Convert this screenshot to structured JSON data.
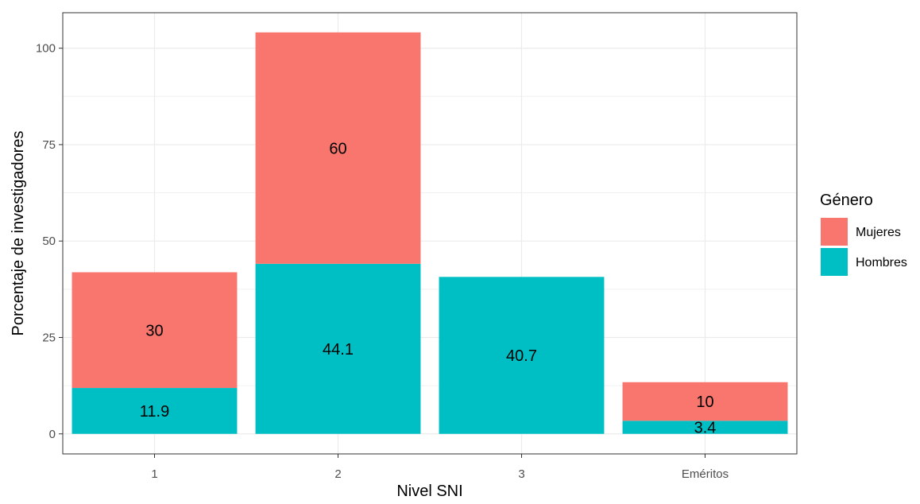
{
  "chart_data": {
    "type": "bar",
    "stacked": true,
    "categories": [
      "1",
      "2",
      "3",
      "Eméritos"
    ],
    "series": [
      {
        "name": "Hombres",
        "color": "#00BFC4",
        "values": [
          11.9,
          44.1,
          40.7,
          3.4
        ],
        "labels": [
          "11.9",
          "44.1",
          "40.7",
          "3.4"
        ]
      },
      {
        "name": "Mujeres",
        "color": "#F8766D",
        "values": [
          30,
          60,
          0,
          10
        ],
        "labels": [
          "30",
          "60",
          "",
          "10"
        ]
      }
    ],
    "xlabel": "Nivel SNI",
    "ylabel": "Porcentaje de investigadores",
    "ylim": [
      -5.2,
      109.2
    ],
    "yticks": [
      0,
      25,
      50,
      75,
      100
    ],
    "grid": true,
    "legend": {
      "title": "Género",
      "position": "right",
      "items": [
        {
          "name": "Mujeres",
          "color": "#F8766D"
        },
        {
          "name": "Hombres",
          "color": "#00BFC4"
        }
      ]
    }
  }
}
